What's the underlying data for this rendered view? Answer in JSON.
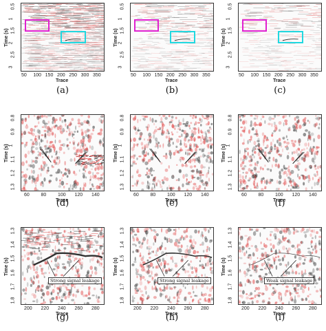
{
  "panels": [
    {
      "id": "a",
      "caption": "(a)",
      "ylabel": "Time (s)",
      "xlabel": "Trace",
      "xticks": [
        "50",
        "100",
        "150",
        "200",
        "250",
        "300",
        "350"
      ],
      "yticks": [
        "0.5",
        "1",
        "1.5",
        "2",
        "2.5",
        "3"
      ],
      "boxes": true,
      "annotation": ""
    },
    {
      "id": "b",
      "caption": "(b)",
      "ylabel": "Time (s)",
      "xlabel": "Trace",
      "xticks": [
        "50",
        "100",
        "150",
        "200",
        "250",
        "300",
        "350"
      ],
      "yticks": [
        "0.5",
        "1",
        "1.5",
        "2",
        "2.5",
        "3"
      ],
      "boxes": true,
      "annotation": ""
    },
    {
      "id": "c",
      "caption": "(c)",
      "ylabel": "Time (s)",
      "xlabel": "Trace",
      "xticks": [
        "50",
        "100",
        "150",
        "200",
        "250",
        "300",
        "350"
      ],
      "yticks": [
        "0.5",
        "1",
        "1.5",
        "2",
        "2.5",
        "3"
      ],
      "boxes": true,
      "annotation": ""
    },
    {
      "id": "d",
      "caption": "(d)",
      "ylabel": "Time (s)",
      "xlabel": "Trace",
      "xticks": [
        "60",
        "80",
        "100",
        "120",
        "140"
      ],
      "yticks": [
        "0.8",
        "0.9",
        "1",
        "1.1",
        "1.2",
        "1.3"
      ],
      "boxes": false,
      "annotation": ""
    },
    {
      "id": "e",
      "caption": "(e)",
      "ylabel": "Time (s)",
      "xlabel": "Trace",
      "xticks": [
        "60",
        "80",
        "100",
        "120",
        "140"
      ],
      "yticks": [
        "0.8",
        "0.9",
        "1",
        "1.1",
        "1.2",
        "1.3"
      ],
      "boxes": false,
      "annotation": ""
    },
    {
      "id": "f",
      "caption": "(f)",
      "ylabel": "Time (s)",
      "xlabel": "Trace",
      "xticks": [
        "60",
        "80",
        "100",
        "120",
        "140"
      ],
      "yticks": [
        "0.8",
        "0.9",
        "1",
        "1.1",
        "1.2",
        "1.3"
      ],
      "boxes": false,
      "annotation": ""
    },
    {
      "id": "g",
      "caption": "(g)",
      "ylabel": "Time (s)",
      "xlabel": "Trace",
      "xticks": [
        "200",
        "220",
        "240",
        "260",
        "280"
      ],
      "yticks": [
        "1.3",
        "1.4",
        "1.5",
        "1.6",
        "1.7",
        "1.8"
      ],
      "boxes": false,
      "annotation": "Strong signal leakage"
    },
    {
      "id": "h",
      "caption": "(h)",
      "ylabel": "Time (s)",
      "xlabel": "Trace",
      "xticks": [
        "200",
        "220",
        "240",
        "260",
        "280"
      ],
      "yticks": [
        "1.3",
        "1.4",
        "1.5",
        "1.6",
        "1.7",
        "1.8"
      ],
      "boxes": false,
      "annotation": "Strong signal leakage"
    },
    {
      "id": "i",
      "caption": "(i)",
      "ylabel": "Time (s)",
      "xlabel": "Trace",
      "xticks": [
        "200",
        "220",
        "240",
        "260",
        "280"
      ],
      "yticks": [
        "1.3",
        "1.4",
        "1.5",
        "1.6",
        "1.7",
        "1.8"
      ],
      "boxes": false,
      "annotation": "Weak signal leakage"
    }
  ],
  "colors": {
    "magenta_box": "#e020d0",
    "cyan_box": "#20d8e0",
    "positive": "#e04040",
    "negative": "#303030"
  }
}
